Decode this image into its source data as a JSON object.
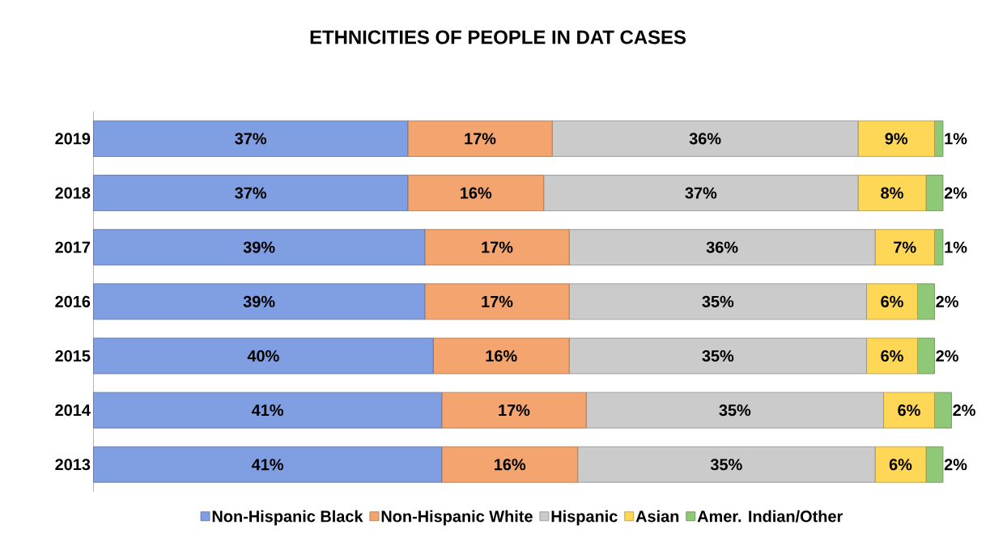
{
  "chart_data": {
    "type": "bar",
    "orientation": "horizontal",
    "stacked": true,
    "title": "ETHNICITIES OF PEOPLE IN DAT CASES",
    "categories": [
      "2019",
      "2018",
      "2017",
      "2016",
      "2015",
      "2014",
      "2013"
    ],
    "tick_labels": "y",
    "legend": "bottom",
    "series": [
      {
        "name": "Non-Hispanic Black",
        "color": "#7f9fe2",
        "values": [
          37,
          37,
          39,
          39,
          40,
          41,
          41
        ],
        "value_labels": [
          "37%",
          "37%",
          "39%",
          "39%",
          "40%",
          "41%",
          "41%"
        ]
      },
      {
        "name": "Non-Hispanic White",
        "color": "#f4a46e",
        "values": [
          17,
          16,
          17,
          17,
          16,
          17,
          16
        ],
        "value_labels": [
          "17%",
          "16%",
          "17%",
          "17%",
          "16%",
          "17%",
          "16%"
        ]
      },
      {
        "name": "Hispanic",
        "color": "#cbcbcb",
        "values": [
          36,
          37,
          36,
          35,
          35,
          35,
          35
        ],
        "value_labels": [
          "36%",
          "37%",
          "36%",
          "35%",
          "35%",
          "35%",
          "35%"
        ]
      },
      {
        "name": "Asian",
        "color": "#ffd757",
        "values": [
          9,
          8,
          7,
          6,
          6,
          6,
          6
        ],
        "value_labels": [
          "9%",
          "8%",
          "7%",
          "6%",
          "6%",
          "6%",
          "6%"
        ]
      },
      {
        "name": "Amer. Indian/Other",
        "color": "#8fc877",
        "values": [
          1,
          2,
          1,
          2,
          2,
          2,
          2
        ],
        "value_labels": [
          "1%",
          "2%",
          "1%",
          "2%",
          "2%",
          "2%",
          "2%"
        ]
      }
    ]
  }
}
